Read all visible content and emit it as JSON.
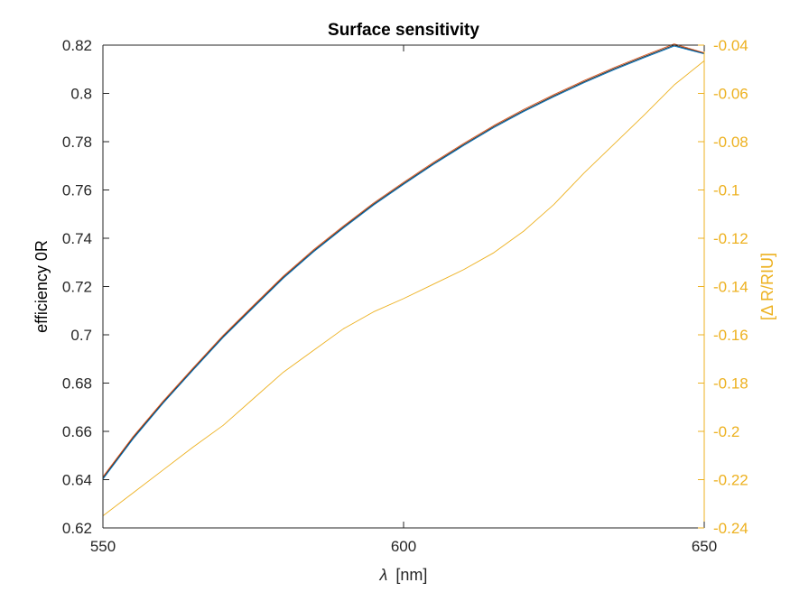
{
  "chart_data": {
    "type": "line",
    "title": "Surface sensitivity",
    "xlabel_symbol": "λ",
    "xlabel_unit": "[nm]",
    "ylabel_left": "efficiency 0R",
    "ylabel_right": "[Δ R/RIU]",
    "xlim": [
      550,
      650
    ],
    "ylim_left": [
      0.62,
      0.82
    ],
    "ylim_right": [
      -0.24,
      -0.04
    ],
    "x_ticks": [
      "550",
      "600",
      "650"
    ],
    "y_left_ticks": [
      "0.62",
      "0.64",
      "0.66",
      "0.68",
      "0.7",
      "0.72",
      "0.74",
      "0.76",
      "0.78",
      "0.8",
      "0.82"
    ],
    "y_right_ticks": [
      "-0.24",
      "-0.22",
      "-0.2",
      "-0.18",
      "-0.16",
      "-0.14",
      "-0.12",
      "-0.1",
      "-0.08",
      "-0.06",
      "-0.04"
    ],
    "grid": false,
    "colors": {
      "left_axis": "#262626",
      "right_axis": "#EDB120",
      "series_black": "#262626",
      "series_blue": "#0072BD",
      "series_red": "#D95319",
      "series_orange": "#EDB120"
    },
    "series": [
      {
        "axis": "left",
        "color": "#262626",
        "x": [
          550,
          555,
          560,
          565,
          570,
          575,
          580,
          585,
          590,
          595,
          600,
          605,
          610,
          615,
          620,
          625,
          630,
          635,
          640,
          645,
          650
        ],
        "y": [
          0.6407,
          0.6573,
          0.672,
          0.6858,
          0.6993,
          0.7116,
          0.7238,
          0.7347,
          0.7446,
          0.7541,
          0.7627,
          0.771,
          0.7788,
          0.7862,
          0.7929,
          0.799,
          0.8048,
          0.8102,
          0.8152,
          0.82,
          0.8166
        ]
      },
      {
        "axis": "left",
        "color": "#0072BD",
        "x": [
          550,
          555,
          560,
          565,
          570,
          575,
          580,
          585,
          590,
          595,
          600,
          605,
          610,
          615,
          620,
          625,
          630,
          635,
          640,
          645,
          650
        ],
        "y": [
          0.6402,
          0.6568,
          0.6716,
          0.6854,
          0.6989,
          0.7112,
          0.7234,
          0.7343,
          0.7442,
          0.7537,
          0.7623,
          0.7706,
          0.7784,
          0.7858,
          0.7925,
          0.7986,
          0.8044,
          0.8098,
          0.8148,
          0.8196,
          0.8164
        ]
      },
      {
        "axis": "left",
        "color": "#D95319",
        "x": [
          550,
          555,
          560,
          565,
          570,
          575,
          580,
          585,
          590,
          595,
          600,
          605,
          610,
          615,
          620,
          625,
          630,
          635,
          640,
          645,
          650
        ],
        "y": [
          0.6412,
          0.6578,
          0.6725,
          0.6863,
          0.6998,
          0.7121,
          0.7243,
          0.7352,
          0.7451,
          0.7546,
          0.7632,
          0.7715,
          0.7793,
          0.7867,
          0.7934,
          0.7995,
          0.8053,
          0.8107,
          0.8157,
          0.8205,
          0.8168
        ]
      },
      {
        "axis": "right",
        "color": "#EDB120",
        "x": [
          550,
          555,
          560,
          565,
          570,
          575,
          580,
          585,
          590,
          595,
          600,
          605,
          610,
          615,
          620,
          625,
          630,
          635,
          640,
          645,
          650
        ],
        "y": [
          -0.235,
          -0.2255,
          -0.216,
          -0.2065,
          -0.1975,
          -0.1865,
          -0.1755,
          -0.1665,
          -0.1575,
          -0.1505,
          -0.145,
          -0.139,
          -0.133,
          -0.126,
          -0.117,
          -0.106,
          -0.093,
          -0.081,
          -0.069,
          -0.0565,
          -0.0465
        ]
      }
    ]
  }
}
